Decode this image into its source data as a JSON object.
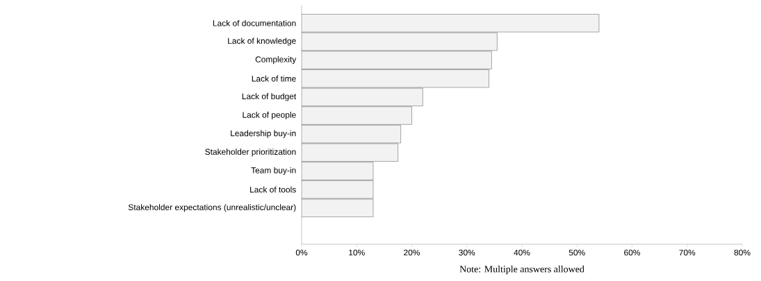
{
  "chart_data": {
    "type": "bar",
    "orientation": "horizontal",
    "categories": [
      "Lack of documentation",
      "Lack of knowledge",
      "Complexity",
      "Lack of time",
      "Lack of budget",
      "Lack of people",
      "Leadership buy-in",
      "Stakeholder prioritization",
      "Team buy-in",
      "Lack of tools",
      "Stakeholder expectations (unrealistic/unclear)"
    ],
    "values": [
      54,
      35.5,
      34.5,
      34,
      22,
      20,
      18,
      17.5,
      13,
      13,
      13
    ],
    "color": "#f2f2f2",
    "xlim": [
      0,
      80
    ],
    "xticks": [
      {
        "value": 0,
        "label": "0%"
      },
      {
        "value": 10,
        "label": "10%"
      },
      {
        "value": 20,
        "label": "20%"
      },
      {
        "value": 30,
        "label": "30%"
      },
      {
        "value": 40,
        "label": "40%"
      },
      {
        "value": 50,
        "label": "50%"
      },
      {
        "value": 60,
        "label": "60%"
      },
      {
        "value": 70,
        "label": "70%"
      },
      {
        "value": 80,
        "label": "80%"
      }
    ],
    "grid": false,
    "annotations": [
      "Note: Multiple answers allowed"
    ]
  }
}
